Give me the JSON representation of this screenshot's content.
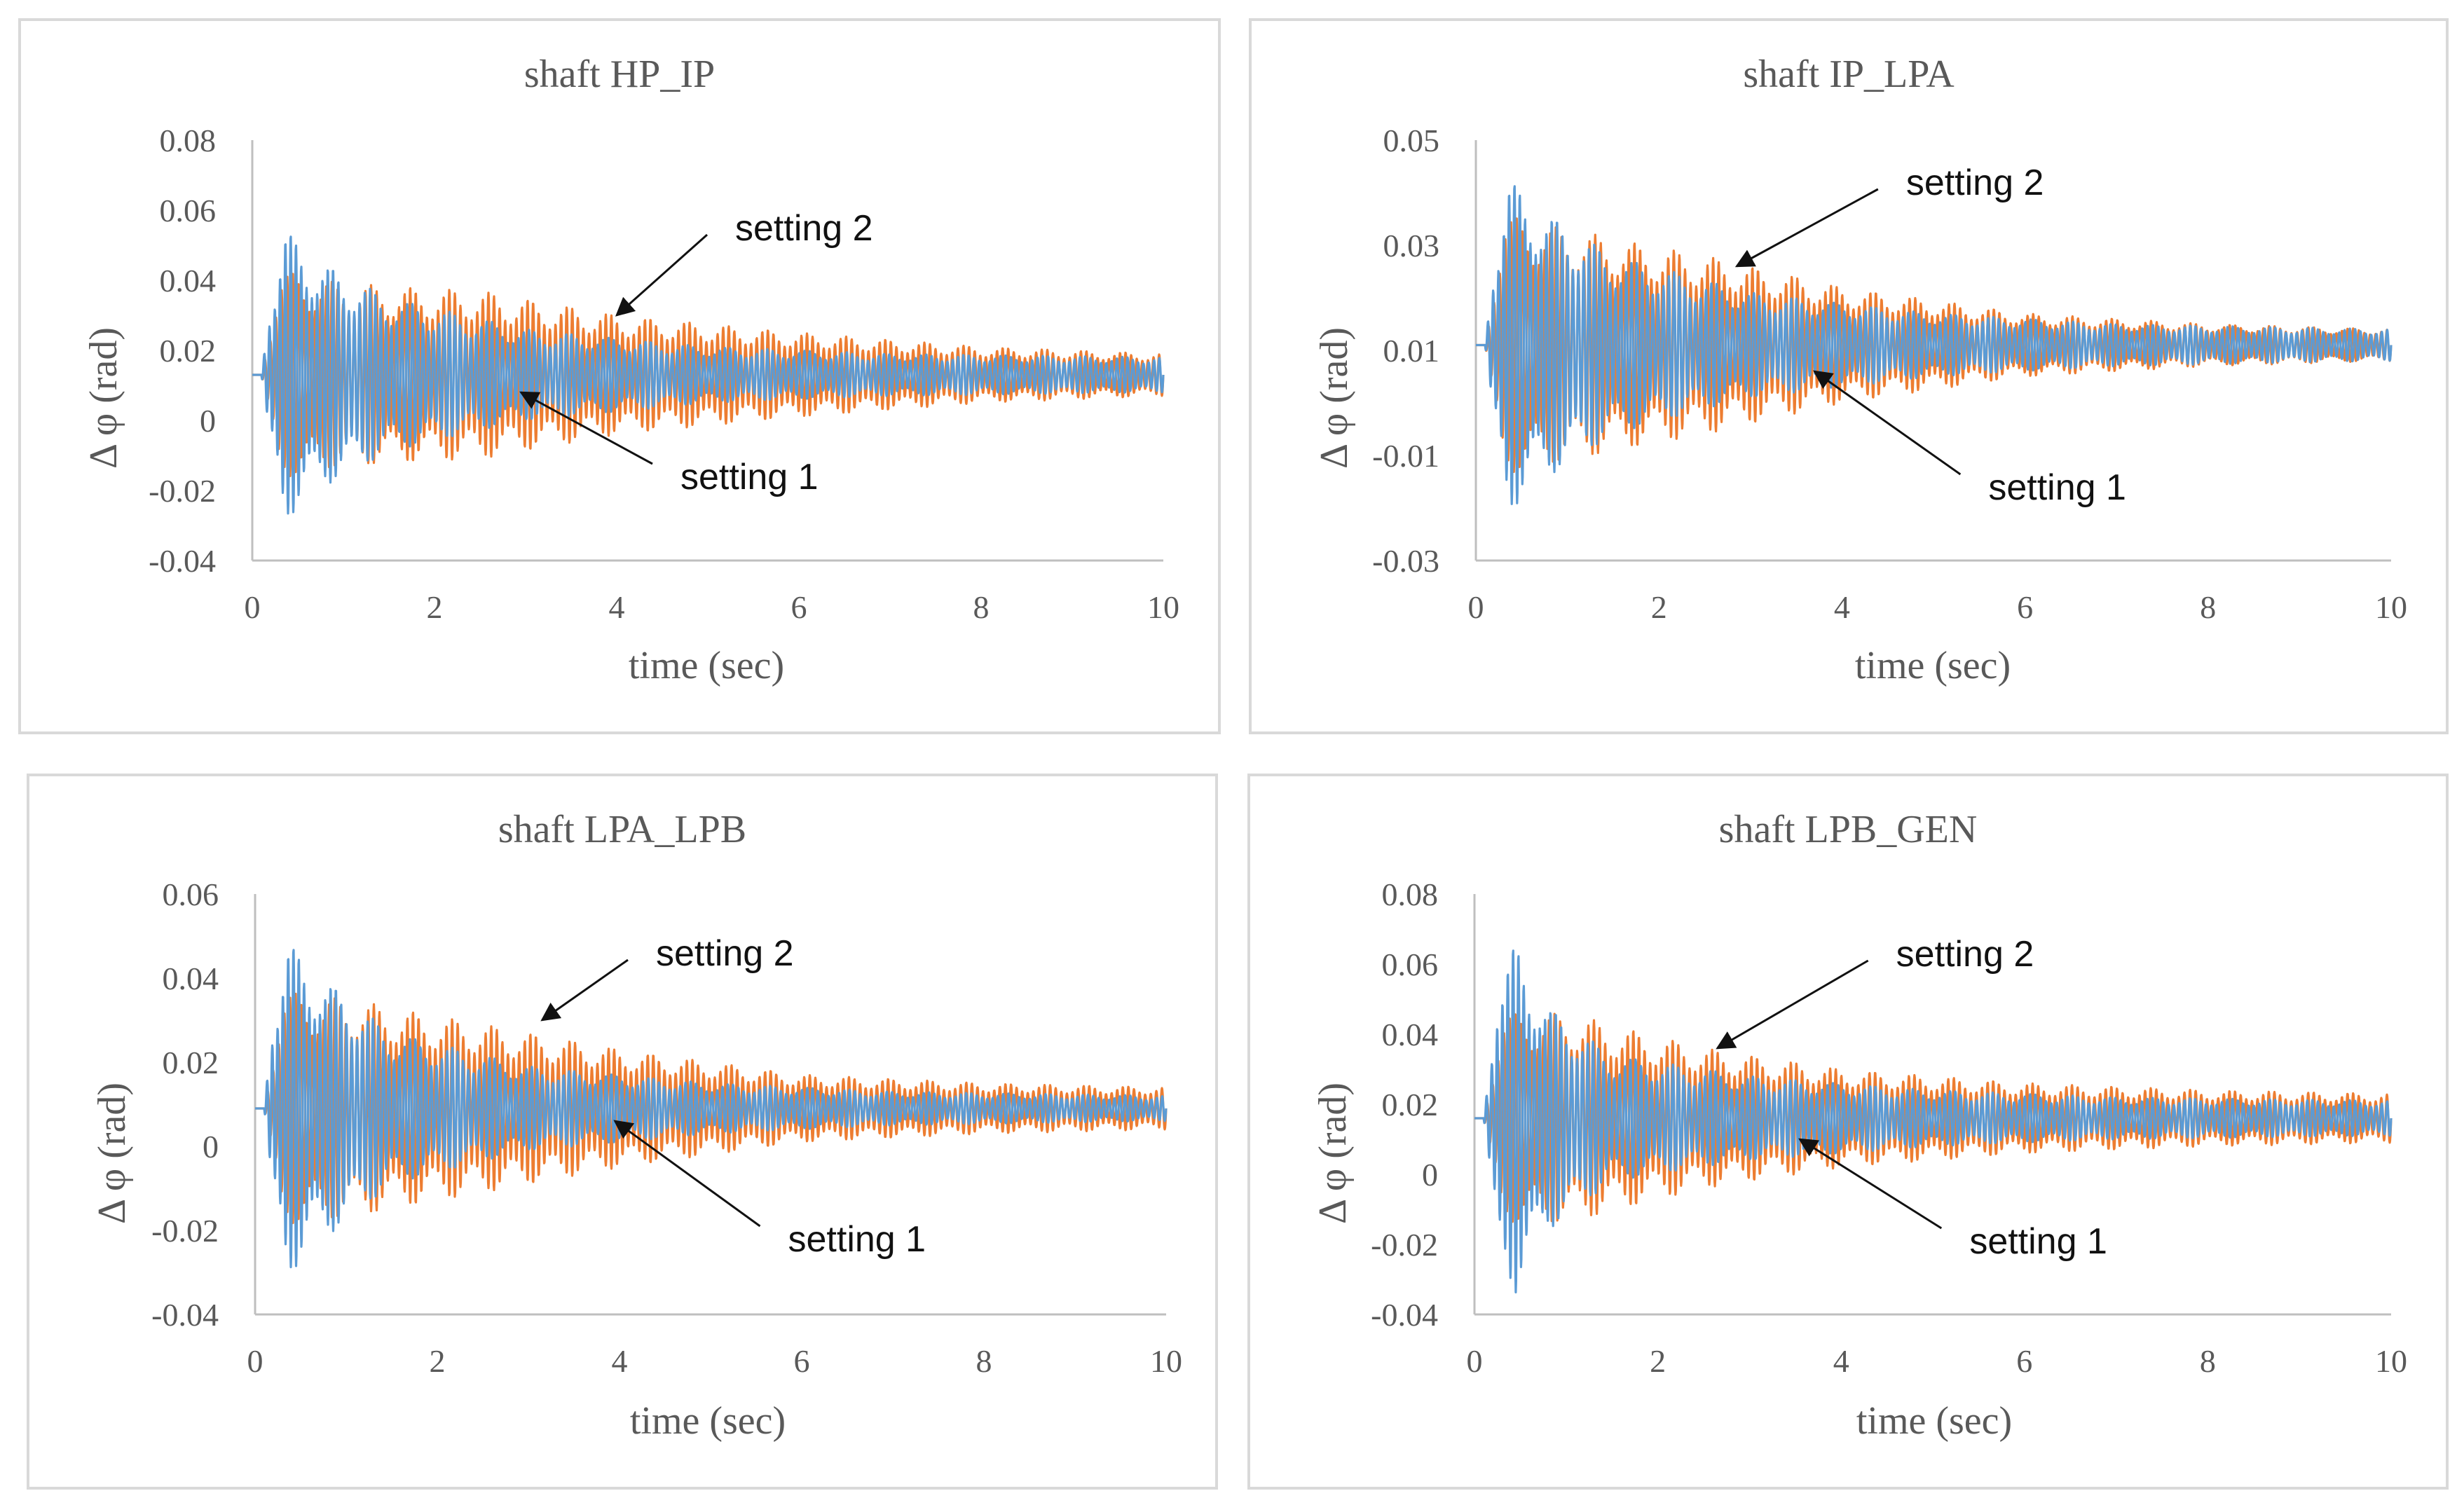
{
  "colors": {
    "setting_1": "#5b9bd5",
    "setting_2": "#ed7d31",
    "axis": "#bfbfbf",
    "text": "#595959",
    "annotation": "#111111"
  },
  "chart_data": [
    {
      "type": "line",
      "title": "shaft HP_IP",
      "xlabel": "time (sec)",
      "ylabel": "Δ φ (rad)",
      "xlim": [
        0,
        10
      ],
      "ylim": [
        -0.04,
        0.08
      ],
      "x_ticks": [
        0,
        2,
        4,
        6,
        8,
        10
      ],
      "y_ticks": [
        -0.04,
        -0.02,
        0,
        0.02,
        0.04,
        0.06,
        0.08
      ],
      "y_tick_labels": [
        "-0.04",
        "-0.02",
        "0",
        "0.02",
        "0.04",
        "0.06",
        "0.08"
      ],
      "grid": false,
      "legend": "none",
      "series": [
        {
          "name": "setting 2",
          "color": "#ed7d31",
          "center": 0.013,
          "amp_envelope": [
            [
              0,
              0.0
            ],
            [
              0.1,
              0.0
            ],
            [
              0.3,
              0.03
            ],
            [
              1.0,
              0.026
            ],
            [
              2.5,
              0.024
            ],
            [
              4,
              0.017
            ],
            [
              6,
              0.012
            ],
            [
              8,
              0.008
            ],
            [
              10,
              0.006
            ]
          ]
        },
        {
          "name": "setting 1",
          "color": "#5b9bd5",
          "center": 0.013,
          "amp_envelope": [
            [
              0,
              0.0
            ],
            [
              0.1,
              0.0
            ],
            [
              0.18,
              0.02
            ],
            [
              0.35,
              0.042
            ],
            [
              0.7,
              0.033
            ],
            [
              1.5,
              0.022
            ],
            [
              3,
              0.013
            ],
            [
              5,
              0.008
            ],
            [
              7,
              0.006
            ],
            [
              10,
              0.005
            ]
          ]
        }
      ],
      "annotations": [
        {
          "text": "setting 2",
          "target_series": "setting 2",
          "target": [
            4.0,
            0.03
          ],
          "label_at": [
            5.3,
            0.055
          ]
        },
        {
          "text": "setting 1",
          "target_series": "setting 1",
          "target": [
            2.95,
            0.008
          ],
          "label_at": [
            4.7,
            -0.016
          ]
        }
      ]
    },
    {
      "type": "line",
      "title": "shaft IP_LPA",
      "xlabel": "time (sec)",
      "ylabel": "Δ φ (rad)",
      "xlim": [
        0,
        10
      ],
      "ylim": [
        -0.03,
        0.05
      ],
      "x_ticks": [
        0,
        2,
        4,
        6,
        8,
        10
      ],
      "y_ticks": [
        -0.03,
        -0.01,
        0.01,
        0.03,
        0.05
      ],
      "y_tick_labels": [
        "-0.03",
        "-0.01",
        "0.01",
        "0.03",
        "0.05"
      ],
      "grid": false,
      "legend": "none",
      "series": [
        {
          "name": "setting 2",
          "color": "#ed7d31",
          "center": 0.011,
          "amp_envelope": [
            [
              0,
              0.0
            ],
            [
              0.1,
              0.0
            ],
            [
              0.3,
              0.025
            ],
            [
              1.0,
              0.022
            ],
            [
              2.5,
              0.017
            ],
            [
              4,
              0.011
            ],
            [
              6,
              0.006
            ],
            [
              8,
              0.004
            ],
            [
              10,
              0.003
            ]
          ]
        },
        {
          "name": "setting 1",
          "color": "#5b9bd5",
          "center": 0.011,
          "amp_envelope": [
            [
              0,
              0.0
            ],
            [
              0.1,
              0.0
            ],
            [
              0.18,
              0.015
            ],
            [
              0.35,
              0.032
            ],
            [
              0.7,
              0.026
            ],
            [
              1.5,
              0.017
            ],
            [
              3,
              0.01
            ],
            [
              5,
              0.006
            ],
            [
              7,
              0.004
            ],
            [
              10,
              0.003
            ]
          ]
        }
      ],
      "annotations": [
        {
          "text": "setting 2",
          "target_series": "setting 2",
          "target": [
            2.85,
            0.026
          ],
          "label_at": [
            4.7,
            0.042
          ]
        },
        {
          "text": "setting 1",
          "target_series": "setting 1",
          "target": [
            3.7,
            0.006
          ],
          "label_at": [
            5.6,
            -0.016
          ]
        }
      ]
    },
    {
      "type": "line",
      "title": "shaft LPA_LPB",
      "xlabel": "time (sec)",
      "ylabel": "Δ φ (rad)",
      "xlim": [
        0,
        10
      ],
      "ylim": [
        -0.04,
        0.06
      ],
      "x_ticks": [
        0,
        2,
        4,
        6,
        8,
        10
      ],
      "y_ticks": [
        -0.04,
        -0.02,
        0,
        0.02,
        0.04,
        0.06
      ],
      "y_tick_labels": [
        "-0.04",
        "-0.02",
        "0",
        "0.02",
        "0.04",
        "0.06"
      ],
      "grid": false,
      "legend": "none",
      "series": [
        {
          "name": "setting 2",
          "color": "#ed7d31",
          "center": 0.009,
          "amp_envelope": [
            [
              0,
              0.0
            ],
            [
              0.1,
              0.0
            ],
            [
              0.3,
              0.028
            ],
            [
              1.0,
              0.026
            ],
            [
              2.5,
              0.02
            ],
            [
              4,
              0.014
            ],
            [
              6,
              0.008
            ],
            [
              8,
              0.006
            ],
            [
              10,
              0.005
            ]
          ]
        },
        {
          "name": "setting 1",
          "color": "#5b9bd5",
          "center": 0.009,
          "amp_envelope": [
            [
              0,
              0.0
            ],
            [
              0.1,
              0.0
            ],
            [
              0.18,
              0.022
            ],
            [
              0.35,
              0.04
            ],
            [
              0.7,
              0.032
            ],
            [
              1.5,
              0.018
            ],
            [
              3,
              0.01
            ],
            [
              5,
              0.006
            ],
            [
              7,
              0.004
            ],
            [
              10,
              0.003
            ]
          ]
        }
      ],
      "annotations": [
        {
          "text": "setting 2",
          "target_series": "setting 2",
          "target": [
            3.15,
            0.03
          ],
          "label_at": [
            4.4,
            0.046
          ]
        },
        {
          "text": "setting 1",
          "target_series": "setting 1",
          "target": [
            3.95,
            0.006
          ],
          "label_at": [
            5.85,
            -0.022
          ]
        }
      ]
    },
    {
      "type": "line",
      "title": "shaft LPB_GEN",
      "xlabel": "time (sec)",
      "ylabel": "Δ φ (rad)",
      "xlim": [
        0,
        10
      ],
      "ylim": [
        -0.04,
        0.08
      ],
      "x_ticks": [
        0,
        2,
        4,
        6,
        8,
        10
      ],
      "y_ticks": [
        -0.04,
        -0.02,
        0,
        0.02,
        0.04,
        0.06,
        0.08
      ],
      "y_tick_labels": [
        "-0.04",
        "-0.02",
        "0",
        "0.02",
        "0.04",
        "0.06",
        "0.08"
      ],
      "grid": false,
      "legend": "none",
      "series": [
        {
          "name": "setting 2",
          "color": "#ed7d31",
          "center": 0.016,
          "amp_envelope": [
            [
              0,
              0.0
            ],
            [
              0.1,
              0.0
            ],
            [
              0.3,
              0.03
            ],
            [
              1.0,
              0.03
            ],
            [
              2.5,
              0.02
            ],
            [
              4,
              0.014
            ],
            [
              6,
              0.01
            ],
            [
              8,
              0.008
            ],
            [
              10,
              0.007
            ]
          ]
        },
        {
          "name": "setting 1",
          "color": "#5b9bd5",
          "center": 0.016,
          "amp_envelope": [
            [
              0,
              0.0
            ],
            [
              0.1,
              0.0
            ],
            [
              0.25,
              0.04
            ],
            [
              0.45,
              0.05
            ],
            [
              0.8,
              0.032
            ],
            [
              1.5,
              0.018
            ],
            [
              3,
              0.012
            ],
            [
              5,
              0.008
            ],
            [
              7,
              0.006
            ],
            [
              10,
              0.005
            ]
          ]
        }
      ],
      "annotations": [
        {
          "text": "setting 2",
          "target_series": "setting 2",
          "target": [
            2.65,
            0.036
          ],
          "label_at": [
            4.6,
            0.063
          ]
        },
        {
          "text": "setting 1",
          "target_series": "setting 1",
          "target": [
            3.55,
            0.01
          ],
          "label_at": [
            5.4,
            -0.019
          ]
        }
      ]
    }
  ]
}
